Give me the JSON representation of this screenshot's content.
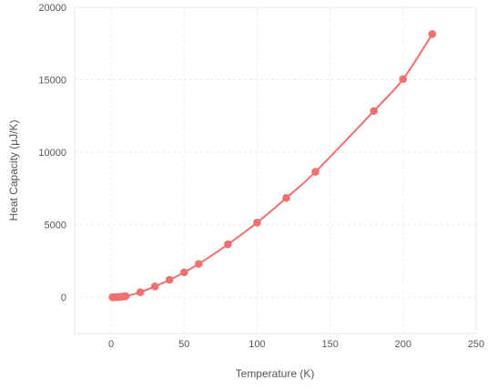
{
  "chart_data": {
    "type": "scatter",
    "title": "",
    "xlabel": "Temperature (K)",
    "ylabel": "Heat Capacity (μJ/K)",
    "xlim": [
      -25,
      250
    ],
    "ylim": [
      -2500,
      20000
    ],
    "xticks": [
      0,
      50,
      100,
      150,
      200,
      250
    ],
    "yticks": [
      0,
      5000,
      10000,
      15000,
      20000
    ],
    "xtick_labels": [
      "0",
      "50",
      "100",
      "150",
      "200",
      "250"
    ],
    "ytick_labels": [
      "0",
      "5000",
      "10000",
      "15000",
      "20000"
    ],
    "grid": true,
    "legend": "none",
    "series": [
      {
        "color": "#f07070",
        "line": "smooth",
        "x": [
          1,
          2,
          3,
          4,
          5,
          6,
          7,
          8,
          9,
          10,
          20,
          30,
          40,
          50,
          60,
          80,
          100,
          120,
          140,
          180,
          200,
          220
        ],
        "y": [
          1,
          3,
          6,
          10,
          16,
          24,
          34,
          46,
          60,
          76,
          350,
          750,
          1200,
          1720,
          2300,
          3650,
          5150,
          6850,
          8650,
          12850,
          15050,
          18150
        ]
      }
    ]
  }
}
